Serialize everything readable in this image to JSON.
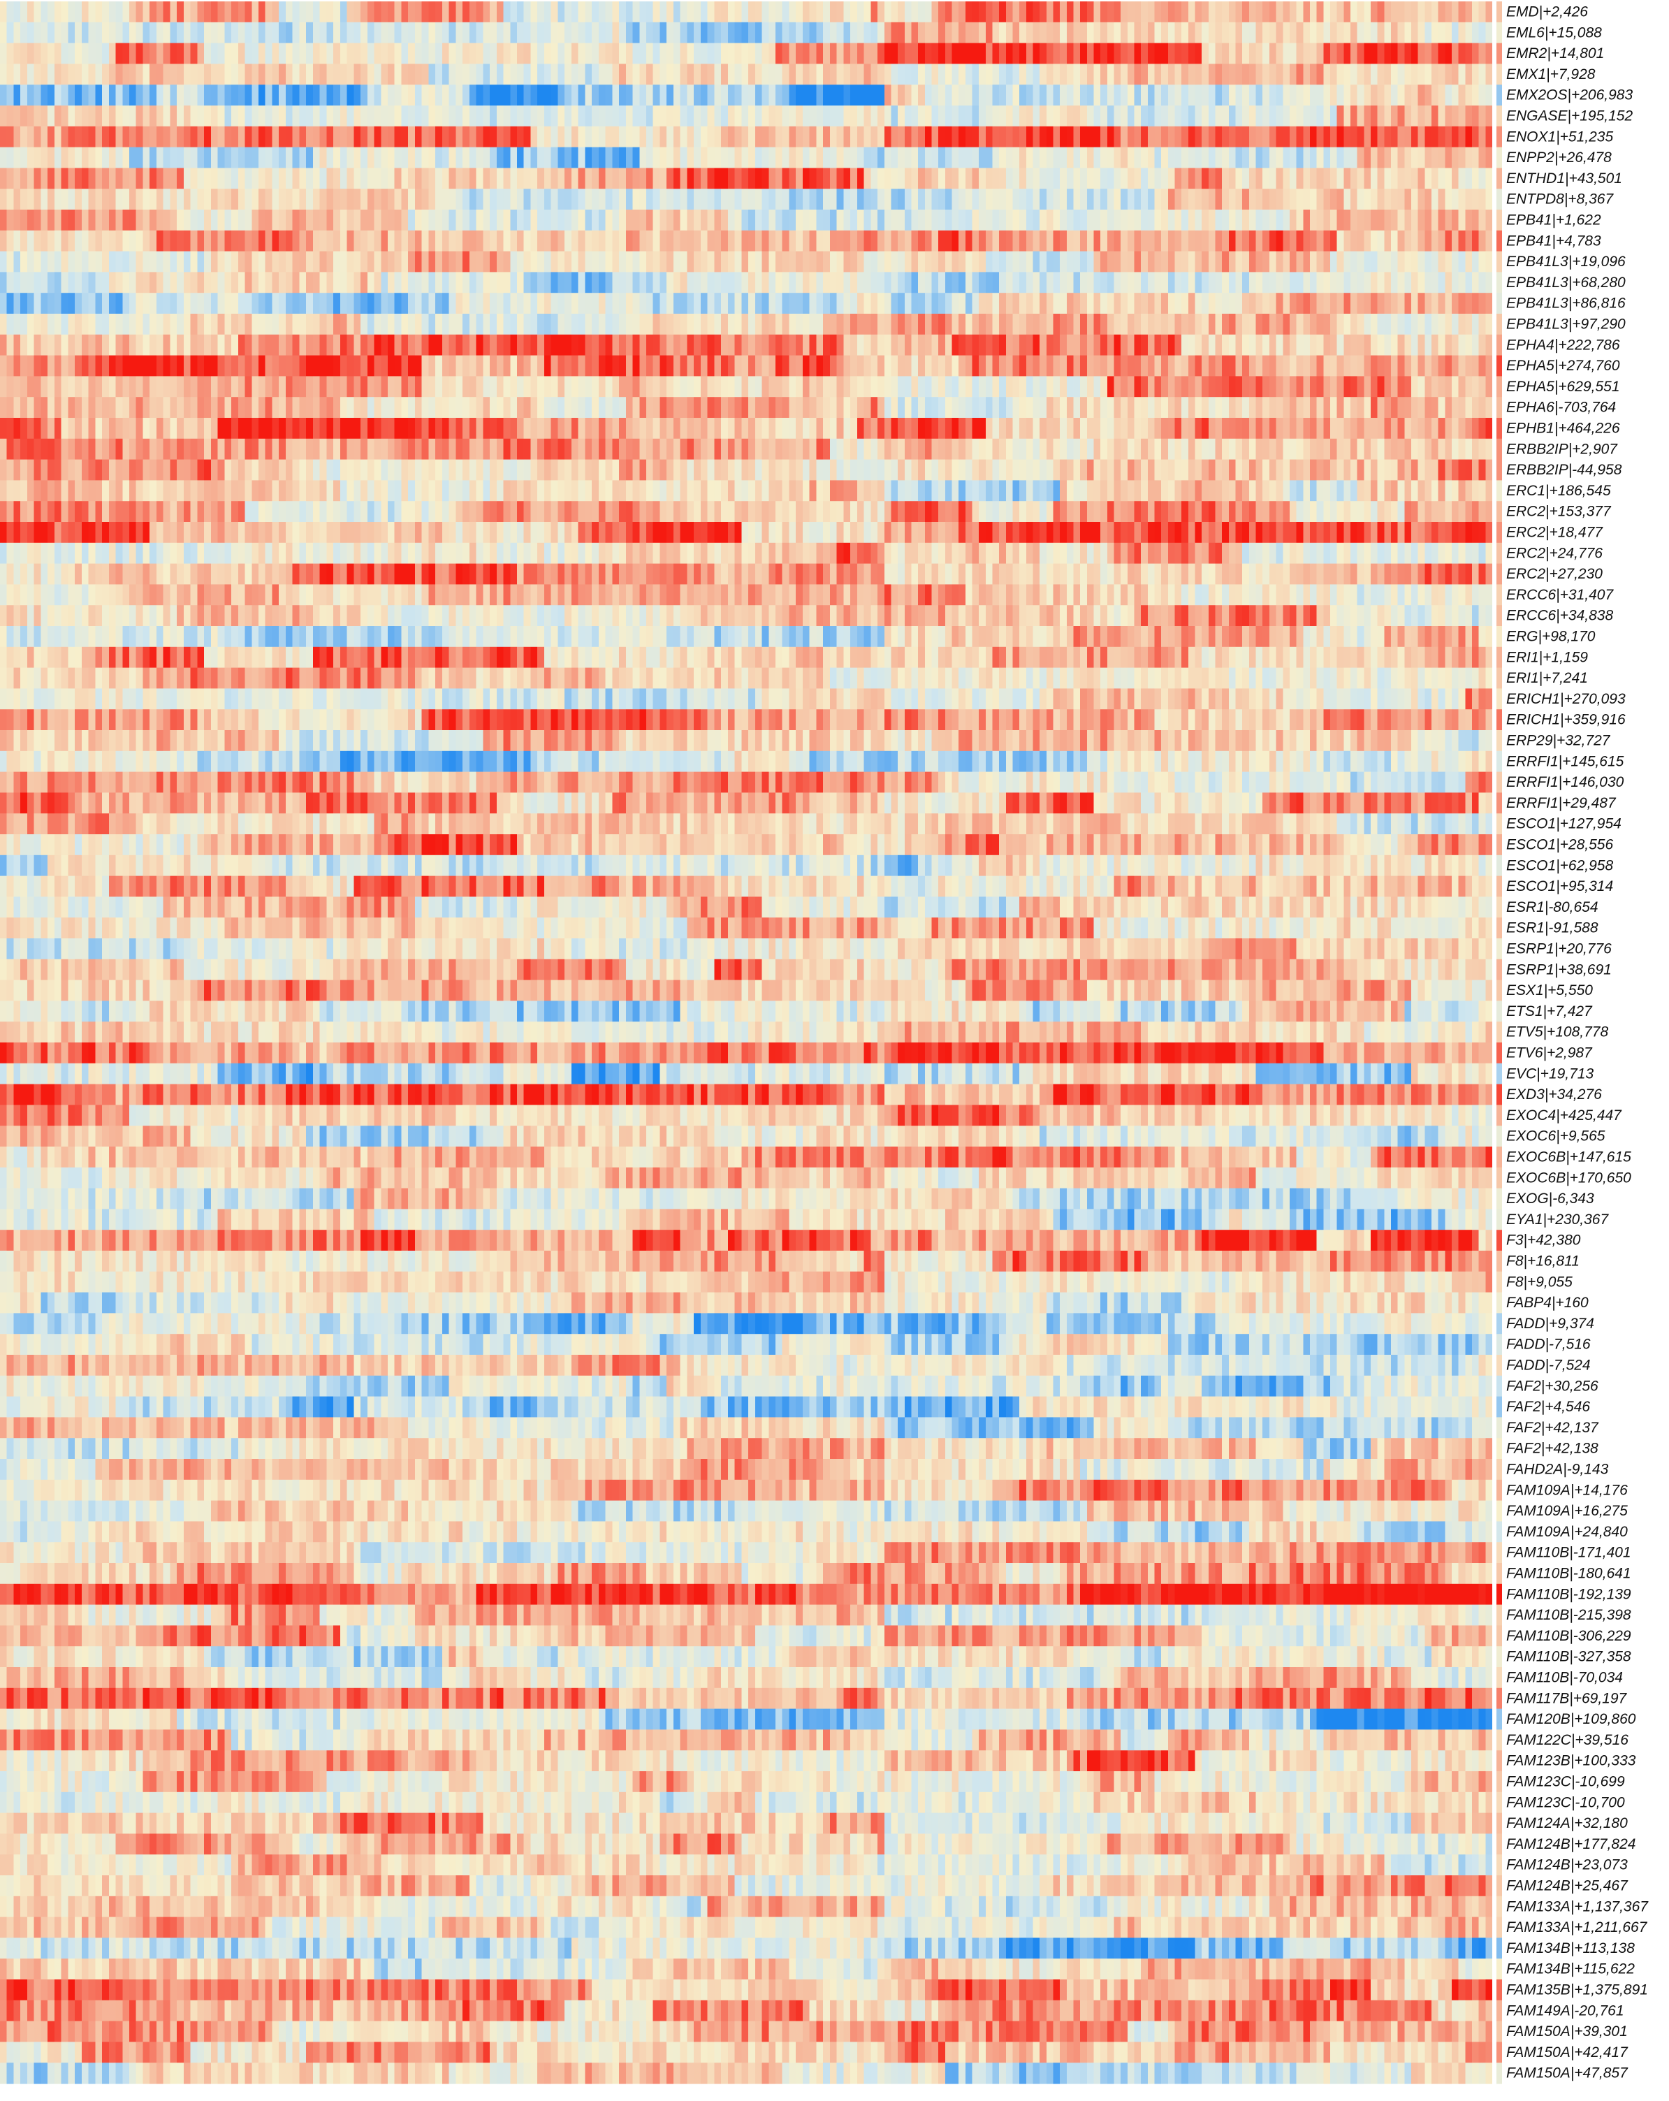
{
  "chart_data": {
    "type": "heatmap",
    "title": "",
    "xlabel": "",
    "ylabel": "",
    "legend": "none",
    "grid": false,
    "color_scale": {
      "low": "#1e88f0",
      "mid_low": "#cfe6ef",
      "mid": "#f7efcc",
      "mid_high": "#f6b094",
      "high": "#f61a10",
      "range": [
        -1,
        1
      ]
    },
    "column_groups": [
      {
        "name": "",
        "columns": 640
      },
      {
        "name": "",
        "columns": 440
      }
    ],
    "rows": [
      {
        "label": "EMD|+2,426",
        "group_means": [
          0.15,
          0.3
        ]
      },
      {
        "label": "EML6|+15,088",
        "group_means": [
          -0.1,
          0.0
        ]
      },
      {
        "label": "EMR2|+14,801",
        "group_means": [
          0.25,
          0.55
        ]
      },
      {
        "label": "EMX1|+7,928",
        "group_means": [
          0.1,
          0.1
        ]
      },
      {
        "label": "EMX2OS|+206,983",
        "group_means": [
          -0.65,
          -0.2
        ]
      },
      {
        "label": "ENGASE|+195,152",
        "group_means": [
          0.1,
          0.1
        ]
      },
      {
        "label": "ENOX1|+51,235",
        "group_means": [
          0.3,
          0.5
        ]
      },
      {
        "label": "ENPP2|+26,478",
        "group_means": [
          -0.2,
          0.1
        ]
      },
      {
        "label": "ENTHD1|+43,501",
        "group_means": [
          0.3,
          0.3
        ]
      },
      {
        "label": "ENTPD8|+8,367",
        "group_means": [
          -0.15,
          -0.1
        ]
      },
      {
        "label": "EPB41|+1,622",
        "group_means": [
          0.1,
          0.2
        ]
      },
      {
        "label": "EPB41|+4,783",
        "group_means": [
          0.5,
          0.5
        ]
      },
      {
        "label": "EPB41L3|+19,096",
        "group_means": [
          0.2,
          0.1
        ]
      },
      {
        "label": "EPB41L3|+68,280",
        "group_means": [
          -0.2,
          0.0
        ]
      },
      {
        "label": "EPB41L3|+86,816",
        "group_means": [
          -0.3,
          0.0
        ]
      },
      {
        "label": "EPB41L3|+97,290",
        "group_means": [
          0.1,
          0.3
        ]
      },
      {
        "label": "EPHA4|+222,786",
        "group_means": [
          0.4,
          0.3
        ]
      },
      {
        "label": "EPHA5|+274,760",
        "group_means": [
          0.6,
          0.6
        ]
      },
      {
        "label": "EPHA5|+629,551",
        "group_means": [
          0.35,
          0.3
        ]
      },
      {
        "label": "EPHA6|-703,764",
        "group_means": [
          0.3,
          0.2
        ]
      },
      {
        "label": "EPHB1|+464,226",
        "group_means": [
          0.55,
          0.5
        ]
      },
      {
        "label": "ERBB2IP|+2,907",
        "group_means": [
          0.4,
          0.4
        ]
      },
      {
        "label": "ERBB2IP|-44,958",
        "group_means": [
          0.3,
          0.5
        ]
      },
      {
        "label": "ERC1|+186,545",
        "group_means": [
          0.0,
          -0.1
        ]
      },
      {
        "label": "ERC2|+153,377",
        "group_means": [
          0.2,
          0.3
        ]
      },
      {
        "label": "ERC2|+18,477",
        "group_means": [
          0.4,
          0.4
        ]
      },
      {
        "label": "ERC2|+24,776",
        "group_means": [
          0.25,
          0.2
        ]
      },
      {
        "label": "ERC2|+27,230",
        "group_means": [
          0.35,
          0.35
        ]
      },
      {
        "label": "ERCC6|+31,407",
        "group_means": [
          0.1,
          0.2
        ]
      },
      {
        "label": "ERCC6|+34,838",
        "group_means": [
          0.3,
          0.2
        ]
      },
      {
        "label": "ERG|+98,170",
        "group_means": [
          -0.05,
          0.1
        ]
      },
      {
        "label": "ERI1|+1,159",
        "group_means": [
          0.4,
          0.2
        ]
      },
      {
        "label": "ERI1|+7,241",
        "group_means": [
          0.2,
          0.2
        ]
      },
      {
        "label": "ERICH1|+270,093",
        "group_means": [
          -0.1,
          0.2
        ]
      },
      {
        "label": "ERICH1|+359,916",
        "group_means": [
          0.45,
          0.5
        ]
      },
      {
        "label": "ERP29|+32,727",
        "group_means": [
          0.1,
          0.1
        ]
      },
      {
        "label": "ERRFI1|+145,615",
        "group_means": [
          -0.3,
          -0.1
        ]
      },
      {
        "label": "ERRFI1|+146,030",
        "group_means": [
          0.25,
          0.1
        ]
      },
      {
        "label": "ERRFI1|+29,487",
        "group_means": [
          0.4,
          0.4
        ]
      },
      {
        "label": "ESCO1|+127,954",
        "group_means": [
          0.1,
          0.1
        ]
      },
      {
        "label": "ESCO1|+28,556",
        "group_means": [
          0.35,
          0.3
        ]
      },
      {
        "label": "ESCO1|+62,958",
        "group_means": [
          -0.1,
          -0.2
        ]
      },
      {
        "label": "ESCO1|+95,314",
        "group_means": [
          0.3,
          0.2
        ]
      },
      {
        "label": "ESR1|-80,654",
        "group_means": [
          0.1,
          0.1
        ]
      },
      {
        "label": "ESR1|-91,588",
        "group_means": [
          0.2,
          0.3
        ]
      },
      {
        "label": "ESRP1|+20,776",
        "group_means": [
          -0.2,
          0.1
        ]
      },
      {
        "label": "ESRP1|+38,691",
        "group_means": [
          0.3,
          0.3
        ]
      },
      {
        "label": "ESX1|+5,550",
        "group_means": [
          0.2,
          0.2
        ]
      },
      {
        "label": "ETS1|+7,427",
        "group_means": [
          -0.15,
          -0.1
        ]
      },
      {
        "label": "ETV5|+108,778",
        "group_means": [
          0.1,
          0.2
        ]
      },
      {
        "label": "ETV6|+2,987",
        "group_means": [
          0.55,
          0.5
        ]
      },
      {
        "label": "EVC|+19,713",
        "group_means": [
          -0.45,
          -0.3
        ]
      },
      {
        "label": "EXD3|+34,276",
        "group_means": [
          0.6,
          0.6
        ]
      },
      {
        "label": "EXOC4|+425,447",
        "group_means": [
          0.3,
          0.3
        ]
      },
      {
        "label": "EXOC6|+9,565",
        "group_means": [
          -0.1,
          -0.1
        ]
      },
      {
        "label": "EXOC6B|+147,615",
        "group_means": [
          0.3,
          0.3
        ]
      },
      {
        "label": "EXOC6B|+170,650",
        "group_means": [
          0.2,
          0.2
        ]
      },
      {
        "label": "EXOG|-6,343",
        "group_means": [
          0.05,
          -0.2
        ]
      },
      {
        "label": "EYA1|+230,367",
        "group_means": [
          0.0,
          -0.2
        ]
      },
      {
        "label": "F3|+42,380",
        "group_means": [
          0.55,
          0.6
        ]
      },
      {
        "label": "F8|+16,811",
        "group_means": [
          0.2,
          0.3
        ]
      },
      {
        "label": "F8|+9,055",
        "group_means": [
          0.1,
          0.1
        ]
      },
      {
        "label": "FABP4|+160",
        "group_means": [
          0.0,
          -0.1
        ]
      },
      {
        "label": "FADD|+9,374",
        "group_means": [
          -0.45,
          -0.3
        ]
      },
      {
        "label": "FADD|-7,516",
        "group_means": [
          -0.2,
          -0.2
        ]
      },
      {
        "label": "FADD|-7,524",
        "group_means": [
          0.2,
          0.0
        ]
      },
      {
        "label": "FAF2|+30,256",
        "group_means": [
          -0.3,
          -0.3
        ]
      },
      {
        "label": "FAF2|+4,546",
        "group_means": [
          -0.45,
          -0.4
        ]
      },
      {
        "label": "FAF2|+42,137",
        "group_means": [
          0.0,
          -0.2
        ]
      },
      {
        "label": "FAF2|+42,138",
        "group_means": [
          0.1,
          -0.1
        ]
      },
      {
        "label": "FAHD2A|-9,143",
        "group_means": [
          0.2,
          0.1
        ]
      },
      {
        "label": "FAM109A|+14,176",
        "group_means": [
          0.3,
          0.3
        ]
      },
      {
        "label": "FAM109A|+16,275",
        "group_means": [
          0.0,
          0.0
        ]
      },
      {
        "label": "FAM109A|+24,840",
        "group_means": [
          -0.2,
          -0.3
        ]
      },
      {
        "label": "FAM110B|-171,401",
        "group_means": [
          0.1,
          0.1
        ]
      },
      {
        "label": "FAM110B|-180,641",
        "group_means": [
          0.2,
          0.2
        ]
      },
      {
        "label": "FAM110B|-192,139",
        "group_means": [
          0.85,
          0.8
        ]
      },
      {
        "label": "FAM110B|-215,398",
        "group_means": [
          0.2,
          0.1
        ]
      },
      {
        "label": "FAM110B|-306,229",
        "group_means": [
          0.2,
          0.2
        ]
      },
      {
        "label": "FAM110B|-327,358",
        "group_means": [
          -0.1,
          0.0
        ]
      },
      {
        "label": "FAM110B|-70,034",
        "group_means": [
          0.1,
          0.1
        ]
      },
      {
        "label": "FAM117B|+69,197",
        "group_means": [
          0.4,
          0.5
        ]
      },
      {
        "label": "FAM120B|+109,860",
        "group_means": [
          -0.3,
          -0.55
        ]
      },
      {
        "label": "FAM122C|+39,516",
        "group_means": [
          0.1,
          0.1
        ]
      },
      {
        "label": "FAM123B|+100,333",
        "group_means": [
          0.3,
          0.3
        ]
      },
      {
        "label": "FAM123C|-10,699",
        "group_means": [
          0.2,
          0.2
        ]
      },
      {
        "label": "FAM123C|-10,700",
        "group_means": [
          0.1,
          0.1
        ]
      },
      {
        "label": "FAM124A|+32,180",
        "group_means": [
          0.3,
          0.2
        ]
      },
      {
        "label": "FAM124B|+177,824",
        "group_means": [
          0.2,
          0.2
        ]
      },
      {
        "label": "FAM124B|+23,073",
        "group_means": [
          0.1,
          0.1
        ]
      },
      {
        "label": "FAM124B|+25,467",
        "group_means": [
          0.2,
          0.2
        ]
      },
      {
        "label": "FAM133A|+1,137,367",
        "group_means": [
          0.1,
          0.1
        ]
      },
      {
        "label": "FAM133A|+1,211,667",
        "group_means": [
          0.2,
          0.1
        ]
      },
      {
        "label": "FAM134B|+113,138",
        "group_means": [
          -0.45,
          -0.5
        ]
      },
      {
        "label": "FAM134B|+115,622",
        "group_means": [
          0.0,
          0.0
        ]
      },
      {
        "label": "FAM135B|+1,375,891",
        "group_means": [
          0.5,
          0.5
        ]
      },
      {
        "label": "FAM149A|-20,761",
        "group_means": [
          0.3,
          0.3
        ]
      },
      {
        "label": "FAM150A|+39,301",
        "group_means": [
          0.2,
          0.2
        ]
      },
      {
        "label": "FAM150A|+42,417",
        "group_means": [
          0.4,
          0.4
        ]
      },
      {
        "label": "FAM150A|+47,857",
        "group_means": [
          -0.1,
          -0.1
        ]
      }
    ]
  }
}
